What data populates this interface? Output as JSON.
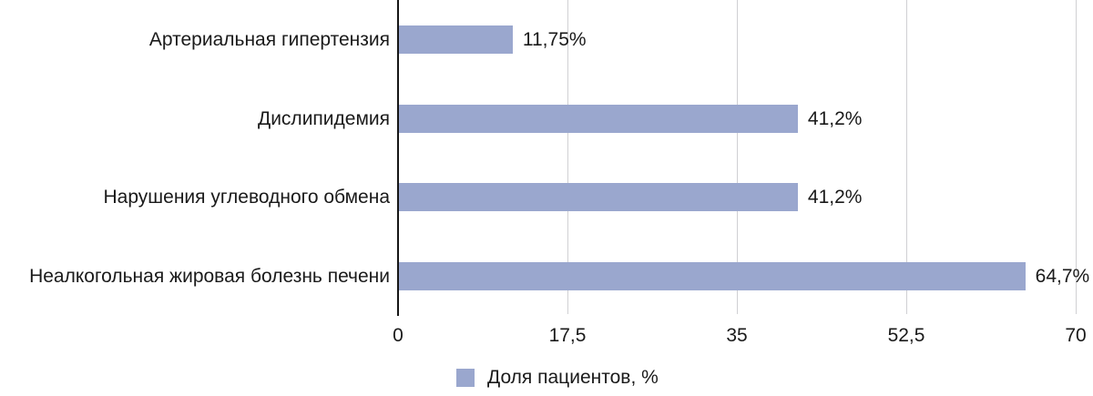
{
  "chart_data": {
    "type": "bar",
    "orientation": "horizontal",
    "title": "",
    "categories": [
      "Артериальная гипертензия",
      "Дислипидемия",
      "Нарушения углеводного обмена",
      "Неалкогольная жировая болезнь печени"
    ],
    "series": [
      {
        "name": "Доля пациентов, %",
        "values": [
          11.75,
          41.2,
          41.2,
          64.7
        ]
      }
    ],
    "value_labels": [
      "11,75%",
      "41,2%",
      "41,2%",
      "64,7%"
    ],
    "x_axis": {
      "min": 0,
      "max": 70,
      "ticks": [
        {
          "label": "0",
          "value": 0
        },
        {
          "label": "17,5",
          "value": 17.5
        },
        {
          "label": "35",
          "value": 35
        },
        {
          "label": "52,5",
          "value": 52.5
        },
        {
          "label": "70",
          "value": 70
        }
      ]
    },
    "grid": true,
    "legend": {
      "position": "bottom-center",
      "items": [
        {
          "label": "Доля пациентов, %",
          "swatch_color": "#9AA7CE"
        }
      ]
    }
  },
  "colors": {
    "bar": "#9AA7CE",
    "gridline": "#D0D0D3",
    "axis": "#161616",
    "text": "#1a1a1a",
    "background": "#ffffff"
  }
}
